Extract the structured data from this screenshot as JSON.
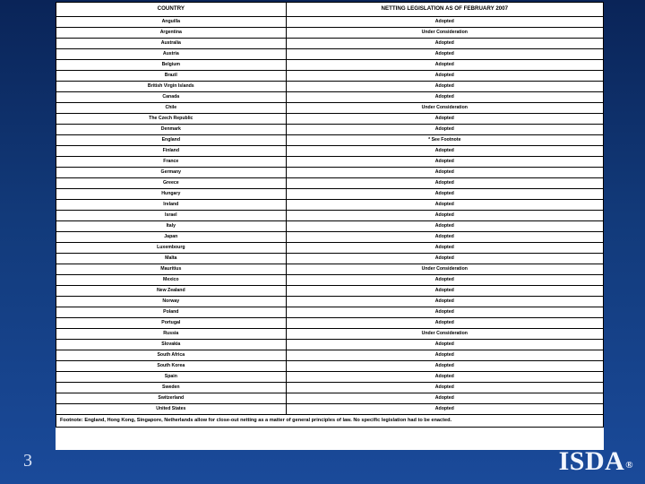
{
  "table": {
    "headers": [
      "COUNTRY",
      "NETTING LEGISLATION AS OF FEBRUARY 2007"
    ],
    "rows": [
      [
        "Anguilla",
        "Adopted"
      ],
      [
        "Argentina",
        "Under Consideration"
      ],
      [
        "Australia",
        "Adopted"
      ],
      [
        "Austria",
        "Adopted"
      ],
      [
        "Belgium",
        "Adopted"
      ],
      [
        "Brazil",
        "Adopted"
      ],
      [
        "British Virgin Islands",
        "Adopted"
      ],
      [
        "Canada",
        "Adopted"
      ],
      [
        "Chile",
        "Under Consideration"
      ],
      [
        "The Czech Republic",
        "Adopted"
      ],
      [
        "Denmark",
        "Adopted"
      ],
      [
        "England",
        "* See Footnote"
      ],
      [
        "Finland",
        "Adopted"
      ],
      [
        "France",
        "Adopted"
      ],
      [
        "Germany",
        "Adopted"
      ],
      [
        "Greece",
        "Adopted"
      ],
      [
        "Hungary",
        "Adopted"
      ],
      [
        "Ireland",
        "Adopted"
      ],
      [
        "Israel",
        "Adopted"
      ],
      [
        "Italy",
        "Adopted"
      ],
      [
        "Japan",
        "Adopted"
      ],
      [
        "Luxembourg",
        "Adopted"
      ],
      [
        "Malta",
        "Adopted"
      ],
      [
        "Mauritius",
        "Under Consideration"
      ],
      [
        "Mexico",
        "Adopted"
      ],
      [
        "New Zealand",
        "Adopted"
      ],
      [
        "Norway",
        "Adopted"
      ],
      [
        "Poland",
        "Adopted"
      ],
      [
        "Portugal",
        "Adopted"
      ],
      [
        "Russia",
        "Under Consideration"
      ],
      [
        "Slovakia",
        "Adopted"
      ],
      [
        "South Africa",
        "Adopted"
      ],
      [
        "South Korea",
        "Adopted"
      ],
      [
        "Spain",
        "Adopted"
      ],
      [
        "Sweden",
        "Adopted"
      ],
      [
        "Switzerland",
        "Adopted"
      ],
      [
        "United States",
        "Adopted"
      ]
    ],
    "footnote": "Footnote: England, Hong Kong, Singapore, Netherlands allow for close-out netting as a matter of general principles of law. No specific legislation had to be enacted."
  },
  "page_number": "3",
  "logo_text": "ISDA",
  "logo_mark": "®"
}
